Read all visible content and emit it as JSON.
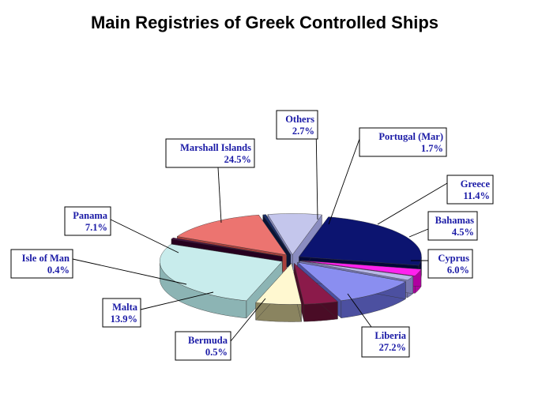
{
  "chart_data": {
    "type": "pie",
    "title": "Main Registries of Greek Controlled Ships",
    "slices": [
      {
        "name": "Liberia",
        "value": 27.2,
        "value_label": "27.2%",
        "color": "#c8ecec",
        "side": "#8cb4b4"
      },
      {
        "name": "Cyprus",
        "value": 6.0,
        "value_label": "6.0%",
        "color": "#fff8d0",
        "side": "#8a8460"
      },
      {
        "name": "Bahamas",
        "value": 4.5,
        "value_label": "4.5%",
        "color": "#8b1a4a",
        "side": "#4a0c26"
      },
      {
        "name": "Greece",
        "value": 11.4,
        "value_label": "11.4%",
        "color": "#8a8ef0",
        "side": "#4c50a0"
      },
      {
        "name": "Portugal (Mar)",
        "value": 1.7,
        "value_label": "1.7%",
        "color": "#b8b8e8",
        "side": "#7878b0"
      },
      {
        "name": "Others",
        "value": 2.7,
        "value_label": "2.7%",
        "color": "#ff22ee",
        "side": "#b000a0"
      },
      {
        "name": "Marshall Islands",
        "value": 24.5,
        "value_label": "24.5%",
        "color": "#0c1470",
        "side": "#040838"
      },
      {
        "name": "Panama",
        "value": 7.1,
        "value_label": "7.1%",
        "color": "#c4c6ec",
        "side": "#8a8cc0"
      },
      {
        "name": "Isle of Man",
        "value": 0.4,
        "value_label": "0.4%",
        "color": "#1a2e6a",
        "side": "#0a1436"
      },
      {
        "name": "Malta",
        "value": 13.9,
        "value_label": "13.9%",
        "color": "#ec7470",
        "side": "#a8403c"
      },
      {
        "name": "Bermuda",
        "value": 0.5,
        "value_label": "0.5%",
        "color": "#4a0c42",
        "side": "#26001f"
      }
    ],
    "legend": "none",
    "labels": "outside with leader lines"
  }
}
